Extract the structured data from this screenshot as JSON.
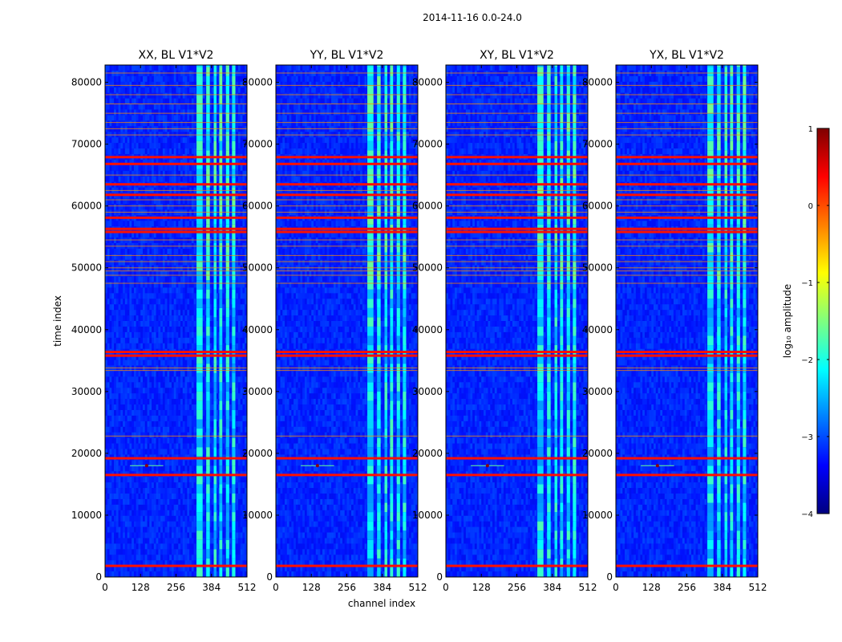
{
  "figure_title": "2014-11-16 0.0-24.0",
  "colormap": {
    "name": "jet",
    "stops": [
      "#00007f",
      "#0000ff",
      "#007fff",
      "#00ffff",
      "#7fff7f",
      "#ffff00",
      "#ff7f00",
      "#ff0000",
      "#7f0000"
    ]
  },
  "chart_data": [
    {
      "type": "heatmap",
      "title": "XX, BL V1*V2",
      "xlabel": "",
      "ylabel": "time index",
      "xlim": [
        0,
        512
      ],
      "ylim": [
        0,
        82800
      ],
      "xticks": [
        0,
        128,
        256,
        384,
        512
      ],
      "yticks": [
        0,
        10000,
        20000,
        30000,
        40000,
        50000,
        60000,
        70000,
        80000
      ]
    },
    {
      "type": "heatmap",
      "title": "YY, BL V1*V2",
      "xlabel": "channel index",
      "ylabel": "",
      "xlim": [
        0,
        512
      ],
      "ylim": [
        0,
        82800
      ],
      "xticks": [
        0,
        128,
        256,
        384,
        512
      ],
      "yticks": [
        0,
        10000,
        20000,
        30000,
        40000,
        50000,
        60000,
        70000,
        80000
      ]
    },
    {
      "type": "heatmap",
      "title": "XY, BL V1*V2",
      "xlabel": "",
      "ylabel": "",
      "xlim": [
        0,
        512
      ],
      "ylim": [
        0,
        82800
      ],
      "xticks": [
        0,
        128,
        256,
        384,
        512
      ],
      "yticks": [
        0,
        10000,
        20000,
        30000,
        40000,
        50000,
        60000,
        70000,
        80000
      ]
    },
    {
      "type": "heatmap",
      "title": "YX, BL V1*V2",
      "xlabel": "",
      "ylabel": "",
      "xlim": [
        0,
        512
      ],
      "ylim": [
        0,
        82800
      ],
      "xticks": [
        0,
        128,
        256,
        384,
        512
      ],
      "yticks": [
        0,
        10000,
        20000,
        30000,
        40000,
        50000,
        60000,
        70000,
        80000
      ]
    }
  ],
  "data_features": {
    "background_log_amplitude": -3.2,
    "rfi_channel_band": [
      330,
      480
    ],
    "rfi_band_log_amplitude": -2.2,
    "rfi_subbands": [
      [
        330,
        352
      ],
      [
        365,
        378
      ],
      [
        392,
        402
      ],
      [
        412,
        423
      ],
      [
        436,
        448
      ],
      [
        458,
        470
      ]
    ],
    "thick_flag_rows": [
      {
        "time": 1800,
        "value": 0.3
      },
      {
        "time": 16500,
        "value": 0.3
      },
      {
        "time": 19200,
        "value": 0.3
      },
      {
        "time": 35800,
        "value": 0.3
      },
      {
        "time": 36400,
        "value": 0.3
      },
      {
        "time": 55800,
        "value": 0.3
      },
      {
        "time": 56300,
        "value": 0.3
      },
      {
        "time": 58100,
        "value": 0.3
      },
      {
        "time": 61800,
        "value": 0.3
      },
      {
        "time": 63500,
        "value": 0.3
      },
      {
        "time": 66800,
        "value": 0.3
      },
      {
        "time": 67900,
        "value": 0.3
      }
    ],
    "thin_flag_rows": [
      22800,
      33400,
      33800,
      47500,
      48800,
      49500,
      50000,
      51000,
      52000,
      53500,
      54500,
      59000,
      60000,
      61000,
      62500,
      65000,
      71500,
      72500,
      73500,
      75000,
      76500,
      78000,
      79500,
      81500
    ],
    "bright_burst": {
      "channel": 150,
      "time": 18000
    }
  },
  "colorbar": {
    "label": "log₁₀ amplitude",
    "range": [
      -4,
      1
    ],
    "ticks": [
      1,
      0,
      -1,
      -2,
      -3,
      -4
    ],
    "tick_labels": [
      "1",
      "0",
      "−1",
      "−2",
      "−3",
      "−4"
    ]
  }
}
